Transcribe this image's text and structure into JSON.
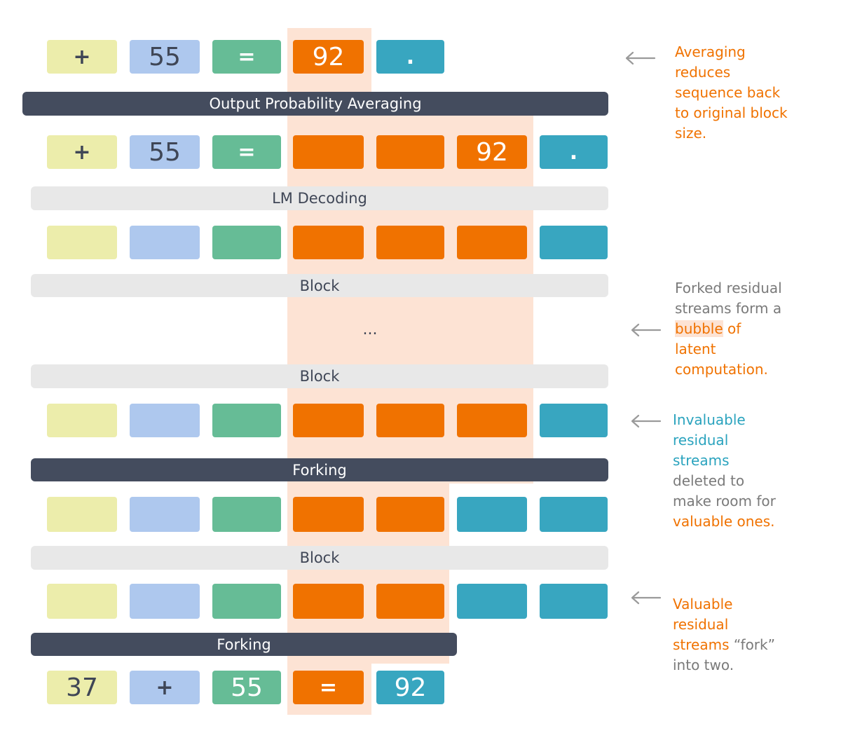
{
  "colors": {
    "yellow": "#ecedab",
    "blue": "#aec8ee",
    "green": "#66bc96",
    "orange": "#f07200",
    "teal": "#38a6c0",
    "dark_bar": "#444c5e",
    "light_bar": "#e8e8e8",
    "bubble": "#fde3d4",
    "arrow": "#9a9a9a"
  },
  "rows": {
    "output": [
      "+",
      "55",
      "=",
      "92",
      "."
    ],
    "averaged": [
      "+",
      "55",
      "=",
      "",
      "",
      "92",
      "."
    ],
    "input": [
      "37",
      "+",
      "55",
      "=",
      "92"
    ]
  },
  "layers": {
    "averaging": "Output Probability Averaging",
    "lm_decoding": "LM Decoding",
    "block_top": "Block",
    "ellipsis": "...",
    "block_mid": "Block",
    "forking_top": "Forking",
    "block_low": "Block",
    "forking_bottom": "Forking"
  },
  "annotations": {
    "averaging": [
      {
        "text": "Averaging",
        "color": "orange"
      },
      {
        "text": "reduces",
        "color": "orange"
      },
      {
        "text": "sequence back",
        "color": "orange"
      },
      {
        "text": "to original block",
        "color": "orange"
      },
      {
        "text": "size.",
        "color": "orange"
      }
    ],
    "bubble": {
      "line1": "Forked residual",
      "line2": "streams form a",
      "line3_highlight": "bubble",
      "line3_rest": " of",
      "line4": "latent",
      "line5": "computation."
    },
    "invaluable": {
      "line1": "Invaluable",
      "line2": "residual",
      "line3": "streams",
      "line4": "deleted to",
      "line5": "make room for",
      "line6": "valuable ones."
    },
    "valuable": {
      "line1": "Valuable",
      "line2": "residual",
      "line3_colored": "streams",
      "line3_rest": " “fork”",
      "line4": "into two."
    }
  }
}
